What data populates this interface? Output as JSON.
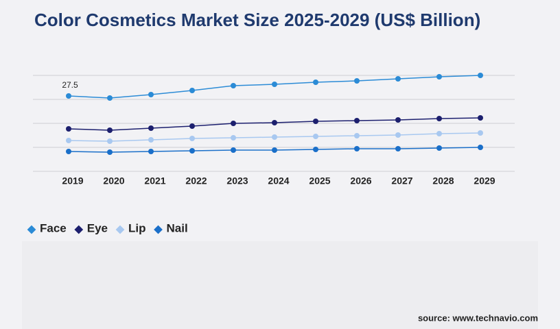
{
  "chart_data": {
    "type": "line",
    "title": "Color Cosmetics Market Size 2025-2029 (US$ Billion)",
    "categories": [
      "2019",
      "2020",
      "2021",
      "2022",
      "2023",
      "2024",
      "2025",
      "2026",
      "2027",
      "2028",
      "2029"
    ],
    "series": [
      {
        "name": "Face",
        "color": "#2b8bd6",
        "values": [
          27.5,
          26.75,
          28,
          29.5,
          31.25,
          31.75,
          32.5,
          33,
          33.75,
          34.5,
          35
        ]
      },
      {
        "name": "Eye",
        "color": "#1c1f6e",
        "values": [
          15.5,
          15,
          15.75,
          16.5,
          17.5,
          17.75,
          18.25,
          18.5,
          18.75,
          19.25,
          19.5
        ]
      },
      {
        "name": "Lip",
        "color": "#a8c8f0",
        "values": [
          11.25,
          11,
          11.5,
          12,
          12.25,
          12.5,
          12.75,
          13,
          13.25,
          13.75,
          14
        ]
      },
      {
        "name": "Nail",
        "color": "#1a6fc9",
        "values": [
          7.25,
          7,
          7.25,
          7.5,
          7.75,
          7.75,
          8,
          8.25,
          8.25,
          8.5,
          8.75
        ]
      }
    ],
    "ylim": [
      0,
      35
    ],
    "yticks": [
      0,
      8.75,
      17.5,
      26.25,
      35
    ],
    "grid": true,
    "source": "source: www.technavio.com"
  }
}
